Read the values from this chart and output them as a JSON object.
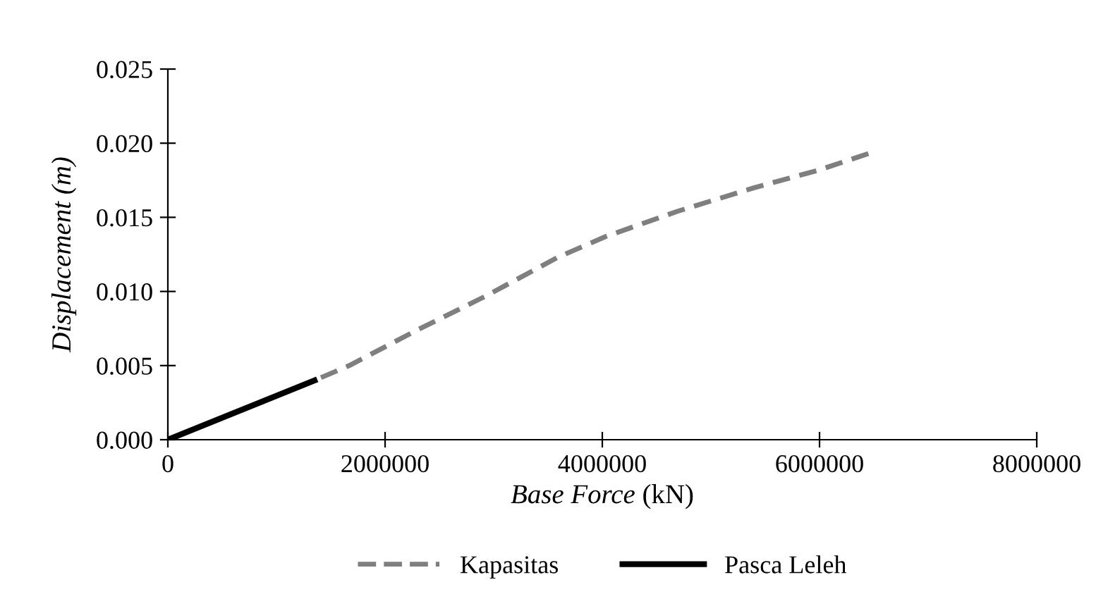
{
  "chart_data": {
    "type": "line",
    "xlabel": "Base Force (kN)",
    "ylabel": "Displacement (m)",
    "xlim": [
      0,
      8000000
    ],
    "xticks": [
      0,
      2000000,
      4000000,
      6000000,
      8000000
    ],
    "ylim": [
      0,
      0.025
    ],
    "yticks": [
      {
        "value": 0,
        "label": "0.000"
      },
      {
        "value": 0.005,
        "label": "0.005"
      },
      {
        "value": 0.01,
        "label": "0.010"
      },
      {
        "value": 0.015,
        "label": "0.015"
      },
      {
        "value": 0.02,
        "label": "0.020"
      },
      {
        "value": 0.025,
        "label": "0.025"
      }
    ],
    "grid": false,
    "legend": "bottom",
    "series": [
      {
        "name": "Kapasitas",
        "color": "#7f7f7f",
        "line_style": "dashed",
        "x": [
          1350000,
          1670000,
          2270000,
          2930000,
          3590000,
          4030000,
          4690000,
          5400000,
          6000000,
          6450000
        ],
        "values": [
          0.004,
          0.005,
          0.0073,
          0.0097,
          0.0123,
          0.0137,
          0.0154,
          0.017,
          0.0182,
          0.0193
        ]
      },
      {
        "name": "Pasca Leleh",
        "color": "#000000",
        "line_style": "solid",
        "x": [
          0,
          1350000
        ],
        "values": [
          0,
          0.004
        ]
      }
    ]
  }
}
